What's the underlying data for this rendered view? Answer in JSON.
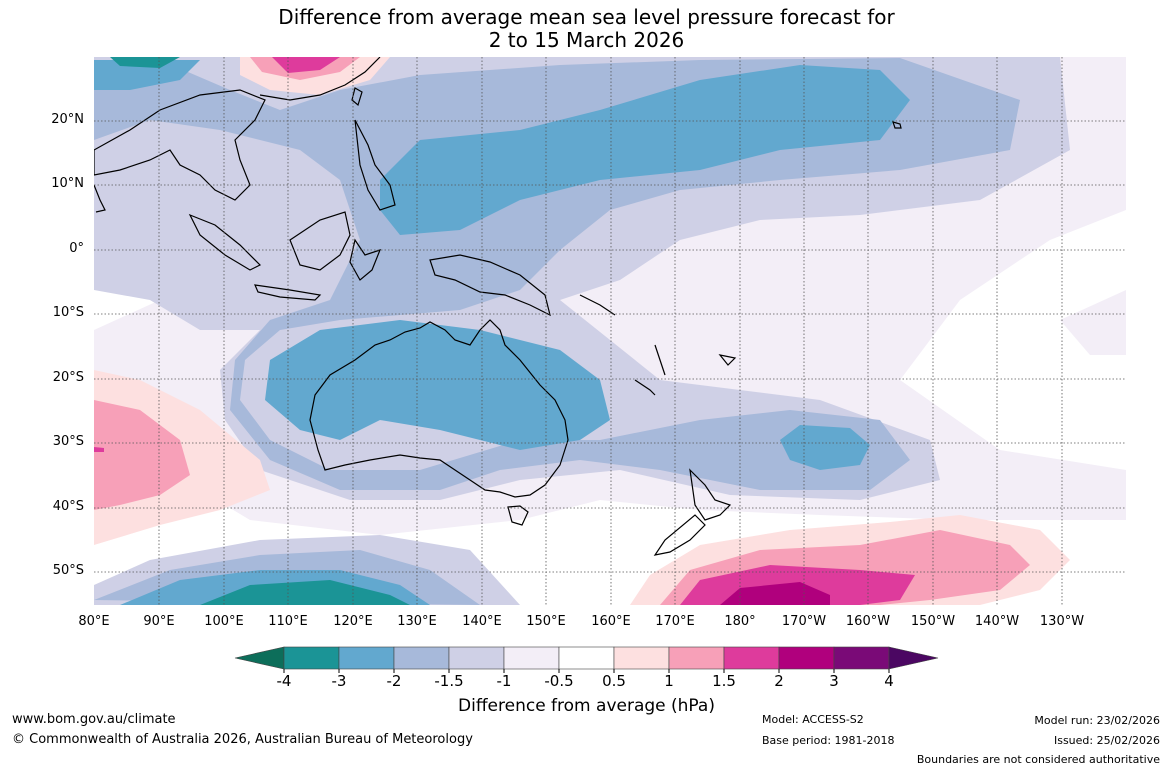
{
  "title": {
    "line1": "Difference from average mean sea level pressure forecast for",
    "line2": "2 to 15 March 2026"
  },
  "latitude_labels": [
    "20°N",
    "10°N",
    "0°",
    "10°S",
    "20°S",
    "30°S",
    "40°S",
    "50°S"
  ],
  "longitude_labels": [
    "80°E",
    "90°E",
    "100°E",
    "110°E",
    "120°E",
    "130°E",
    "140°E",
    "150°E",
    "160°E",
    "170°E",
    "180°",
    "170°W",
    "160°W",
    "150°W",
    "140°W",
    "130°W"
  ],
  "colorbar": {
    "labels": [
      "-4",
      "-3",
      "-2",
      "-1.5",
      "-1",
      "-0.5",
      "0.5",
      "1",
      "1.5",
      "2",
      "3",
      "4"
    ],
    "colors": [
      "#0d6e5a",
      "#1b9496",
      "#62a8cf",
      "#a7b9da",
      "#cfd0e6",
      "#f3eef7",
      "#ffffff",
      "#fde0e0",
      "#f7a0b8",
      "#de3b9c",
      "#b0007d",
      "#7a0a77",
      "#4b0762"
    ],
    "title": "Difference from average (hPa)"
  },
  "footer": {
    "url": "www.bom.gov.au/climate",
    "copyright": "© Commonwealth of Australia 2026, Australian Bureau of Meteorology",
    "model": "Model: ACCESS-S2",
    "base_period": "Base period: 1981-2018",
    "model_run": "Model run: 23/02/2026",
    "issued": "Issued: 25/02/2026",
    "disclaimer": "Boundaries are not considered authoritative"
  }
}
